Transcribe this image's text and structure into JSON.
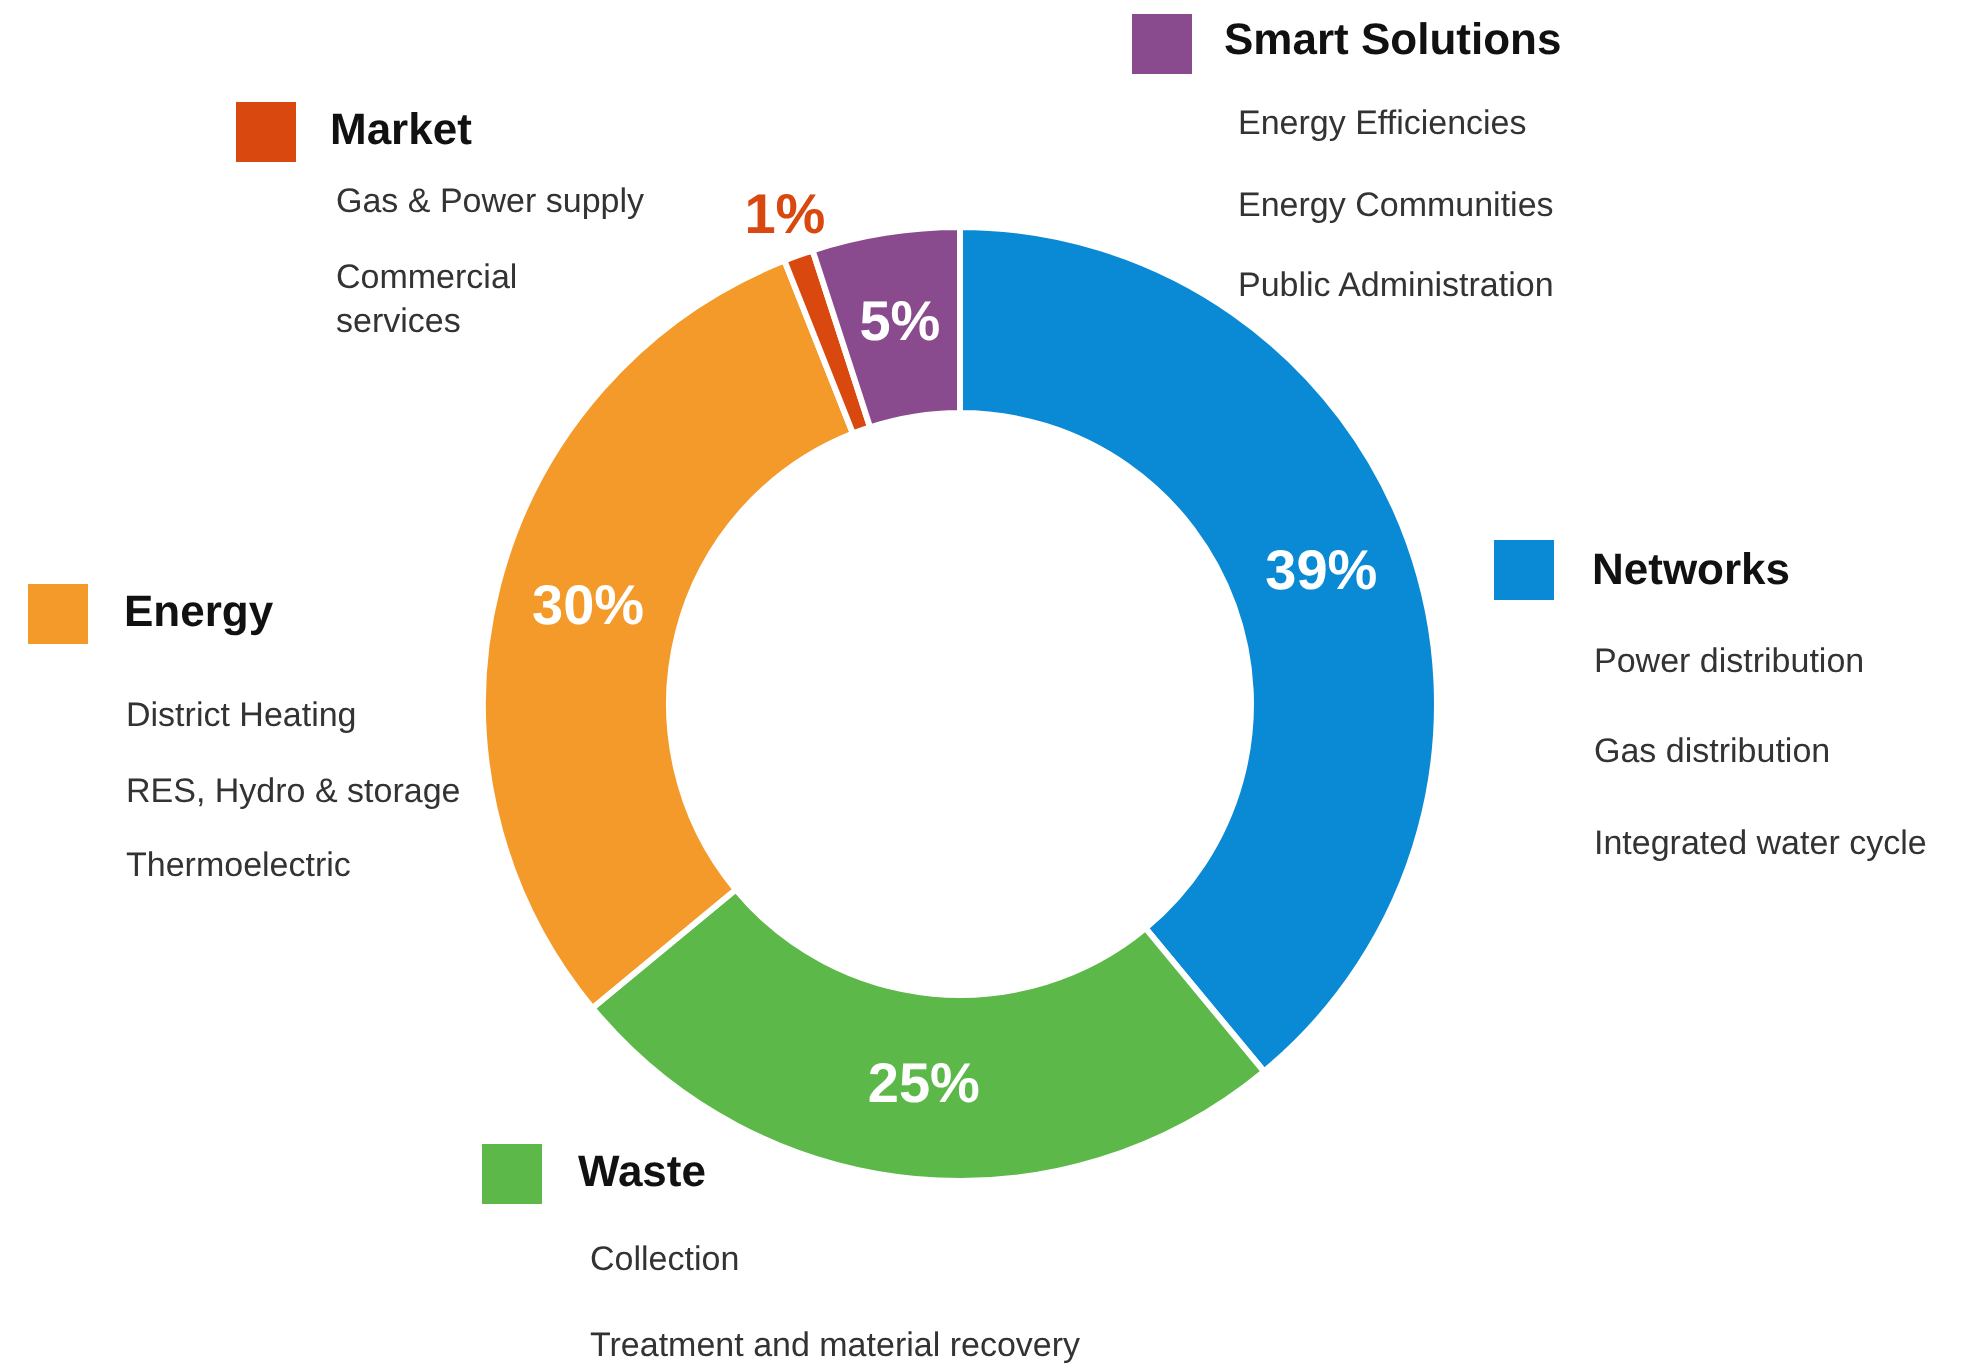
{
  "chart_data": {
    "type": "donut",
    "categories": [
      "Networks",
      "Waste",
      "Energy",
      "Market",
      "Smart Solutions"
    ],
    "values": [
      39,
      25,
      30,
      1,
      5
    ],
    "colors": [
      "#0a8ad4",
      "#5cb848",
      "#f39a2a",
      "#d9480f",
      "#8a4a8e"
    ],
    "legend": "top left",
    "value_labels": [
      "39%",
      "25%",
      "30%",
      "1%",
      "5%"
    ],
    "annotations": [
      "Power distribution",
      "Gas distribution",
      "Integrated water cycle",
      "Collection",
      "Treatment and material recovery",
      "District Heating",
      "RES, Hydro & storage",
      "Thermoelectric",
      "Gas & Power supply",
      "Commercial services",
      "Energy Efficiencies",
      "Energy Communities",
      "Public Administration"
    ]
  }
}
